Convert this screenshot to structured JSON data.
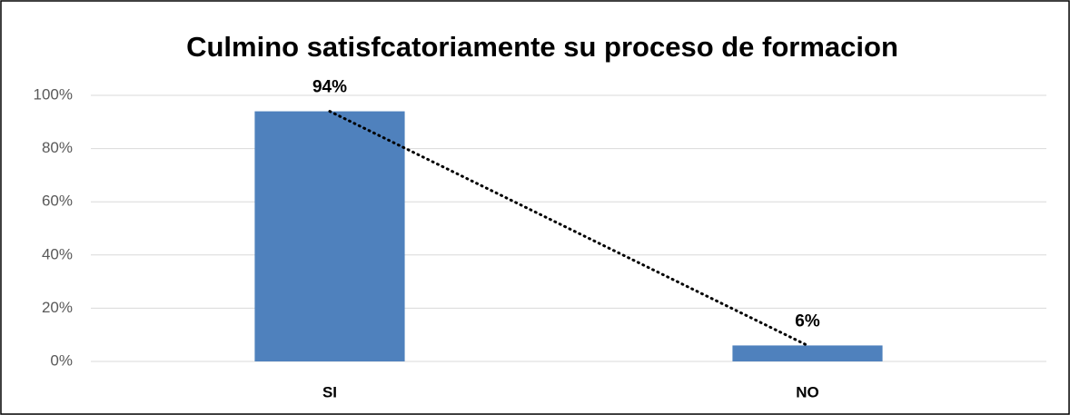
{
  "chart_data": {
    "type": "bar",
    "title": "Culmino satisfcatoriamente su proceso de formacion",
    "categories": [
      "SI",
      "NO"
    ],
    "values": [
      94,
      6
    ],
    "value_labels": [
      "94%",
      "6%"
    ],
    "color": "#4f81bd",
    "ylim": [
      0,
      100
    ],
    "yticks": [
      {
        "value": 0,
        "label": "0%"
      },
      {
        "value": 20,
        "label": "20%"
      },
      {
        "value": 40,
        "label": "40%"
      },
      {
        "value": 60,
        "label": "60%"
      },
      {
        "value": 80,
        "label": "80%"
      },
      {
        "value": 100,
        "label": "100%"
      }
    ],
    "grid": true,
    "trendline": "linear"
  }
}
